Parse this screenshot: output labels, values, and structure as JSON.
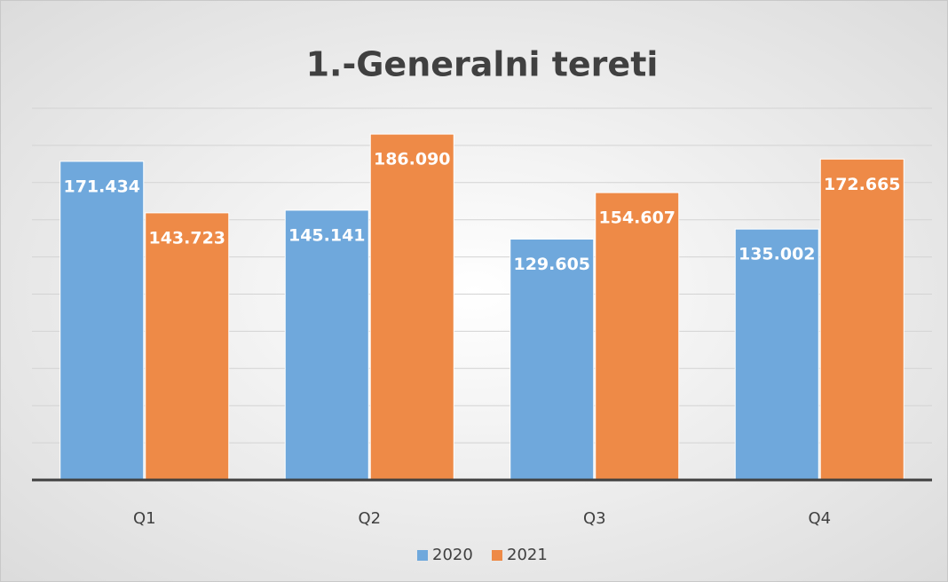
{
  "chart_data": {
    "type": "bar",
    "title": "1.-Generalni tereti",
    "categories": [
      "Q1",
      "Q2",
      "Q3",
      "Q4"
    ],
    "series": [
      {
        "name": "2020",
        "color": "#6fa8dc",
        "values": [
          171434,
          145141,
          129605,
          135002
        ],
        "value_labels": [
          "171.434",
          "145.141",
          "129.605",
          "135.002"
        ]
      },
      {
        "name": "2021",
        "color": "#ee8a47",
        "values": [
          143723,
          186090,
          154607,
          172665
        ],
        "value_labels": [
          "143.723",
          "186.090",
          "154.607",
          "172.665"
        ]
      }
    ],
    "ylim": [
      0,
      200000
    ],
    "yticks": [
      0,
      20000,
      40000,
      60000,
      80000,
      100000,
      120000,
      140000,
      160000,
      180000,
      200000
    ],
    "grid": true,
    "legend": "bottom"
  }
}
